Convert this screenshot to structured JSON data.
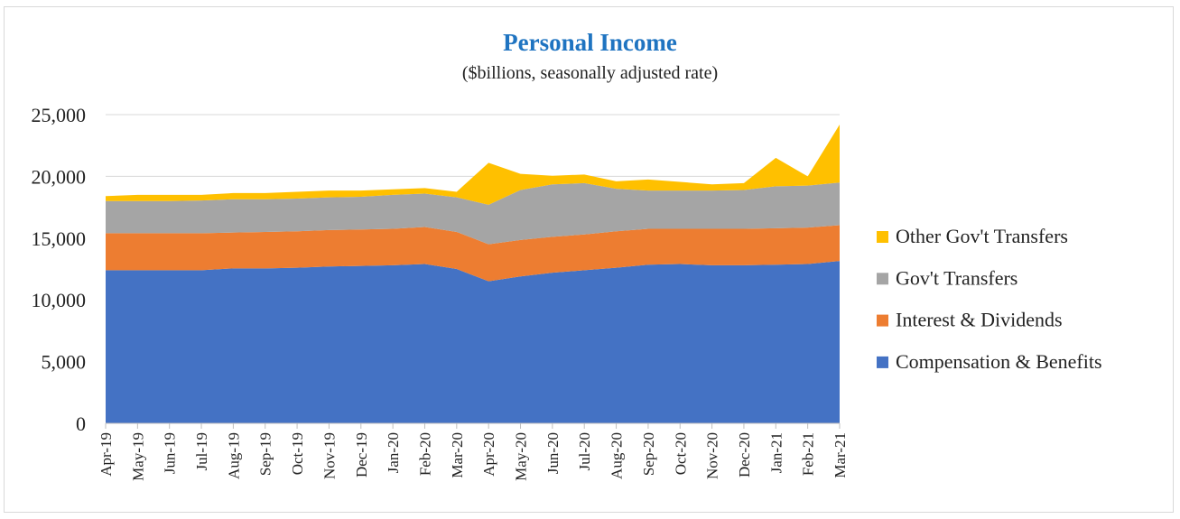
{
  "chart_data": {
    "type": "area",
    "stacked": true,
    "title": "Personal Income",
    "subtitle": "($billions, seasonally adjusted rate)",
    "xlabel": "",
    "ylabel": "",
    "ylim": [
      0,
      25000
    ],
    "yticks": [
      0,
      5000,
      10000,
      15000,
      20000,
      25000
    ],
    "ytick_labels": [
      "0",
      "5,000",
      "10,000",
      "15,000",
      "20,000",
      "25,000"
    ],
    "grid": "horizontal",
    "legend_position": "right",
    "categories": [
      "Apr-19",
      "May-19",
      "Jun-19",
      "Jul-19",
      "Aug-19",
      "Sep-19",
      "Oct-19",
      "Nov-19",
      "Dec-19",
      "Jan-20",
      "Feb-20",
      "Mar-20",
      "Apr-20",
      "May-20",
      "Jun-20",
      "Jul-20",
      "Aug-20",
      "Sep-20",
      "Oct-20",
      "Nov-20",
      "Dec-20",
      "Jan-21",
      "Feb-21",
      "Mar-21"
    ],
    "series": [
      {
        "name": "Compensation & Benefits",
        "color": "#4472c4",
        "values": [
          12400,
          12400,
          12400,
          12400,
          12550,
          12550,
          12600,
          12700,
          12750,
          12800,
          12900,
          12500,
          11500,
          11900,
          12200,
          12400,
          12600,
          12850,
          12900,
          12800,
          12800,
          12850,
          12900,
          13150
        ]
      },
      {
        "name": "Interest & Dividends",
        "color": "#ed7d31",
        "values": [
          3000,
          3000,
          3000,
          3000,
          2900,
          2950,
          2950,
          2950,
          2950,
          2950,
          3000,
          3000,
          3000,
          2950,
          2900,
          2900,
          2950,
          2900,
          2850,
          2950,
          2950,
          2950,
          2950,
          2900
        ]
      },
      {
        "name": "Gov't Transfers",
        "color": "#a5a5a5",
        "values": [
          2600,
          2600,
          2600,
          2650,
          2700,
          2650,
          2650,
          2650,
          2650,
          2750,
          2700,
          2800,
          3200,
          4050,
          4250,
          4150,
          3450,
          3100,
          3100,
          3100,
          3150,
          3400,
          3400,
          3450
        ]
      },
      {
        "name": "Other Gov't Transfers",
        "color": "#ffc000",
        "values": [
          400,
          500,
          500,
          450,
          500,
          500,
          550,
          550,
          500,
          450,
          450,
          450,
          3400,
          1300,
          700,
          700,
          600,
          900,
          700,
          500,
          550,
          2300,
          750,
          4700
        ]
      }
    ]
  }
}
